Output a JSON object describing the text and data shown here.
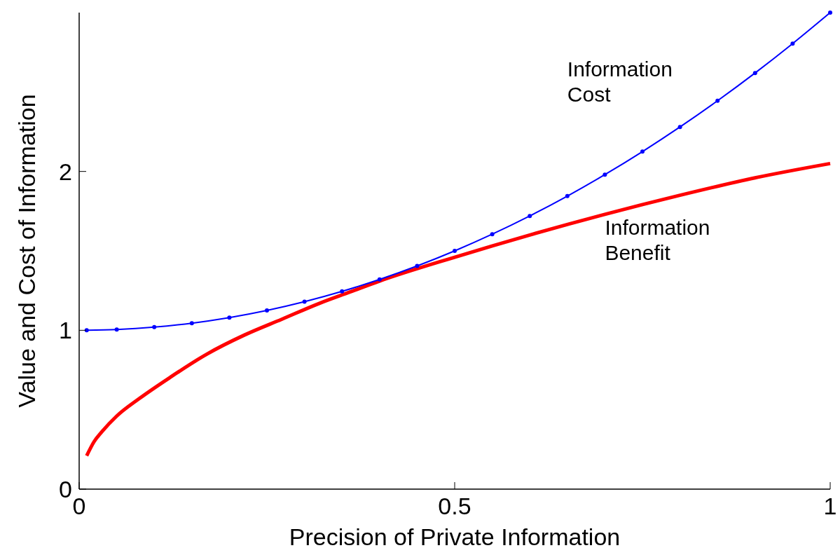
{
  "chart_data": {
    "type": "line",
    "xlabel": "Precision of Private Information",
    "ylabel": "Value and Cost of Information",
    "xlim": [
      0,
      1
    ],
    "xticks": [
      0,
      0.5,
      1
    ],
    "ylim": [
      0,
      3
    ],
    "yticks": [
      0,
      1,
      2
    ],
    "grid": false,
    "series": [
      {
        "color": "#0000ff",
        "marker": "circle",
        "x": [
          0.01,
          0.05,
          0.1,
          0.15,
          0.2,
          0.25,
          0.3,
          0.35,
          0.4,
          0.45,
          0.5,
          0.55,
          0.6,
          0.65,
          0.7,
          0.75,
          0.8,
          0.85,
          0.9,
          0.95,
          1
        ],
        "values": [
          1.0,
          1.005,
          1.02,
          1.045,
          1.08,
          1.125,
          1.18,
          1.245,
          1.32,
          1.405,
          1.5,
          1.605,
          1.72,
          1.845,
          1.98,
          2.125,
          2.28,
          2.445,
          2.62,
          2.805,
          3.0
        ]
      },
      {
        "color": "#ff0000",
        "marker": "none",
        "x": [
          0.01,
          0.02,
          0.03,
          0.05,
          0.08,
          0.12,
          0.17,
          0.22,
          0.27,
          0.32,
          0.36,
          0.4,
          0.5,
          0.6,
          0.7,
          0.8,
          0.9,
          1
        ],
        "values": [
          0.21,
          0.3,
          0.36,
          0.46,
          0.57,
          0.7,
          0.85,
          0.97,
          1.07,
          1.17,
          1.24,
          1.31,
          1.46,
          1.6,
          1.73,
          1.85,
          1.96,
          2.05
        ]
      }
    ],
    "annotations": [
      "Information\nCost",
      "Information\nBenefit"
    ]
  }
}
